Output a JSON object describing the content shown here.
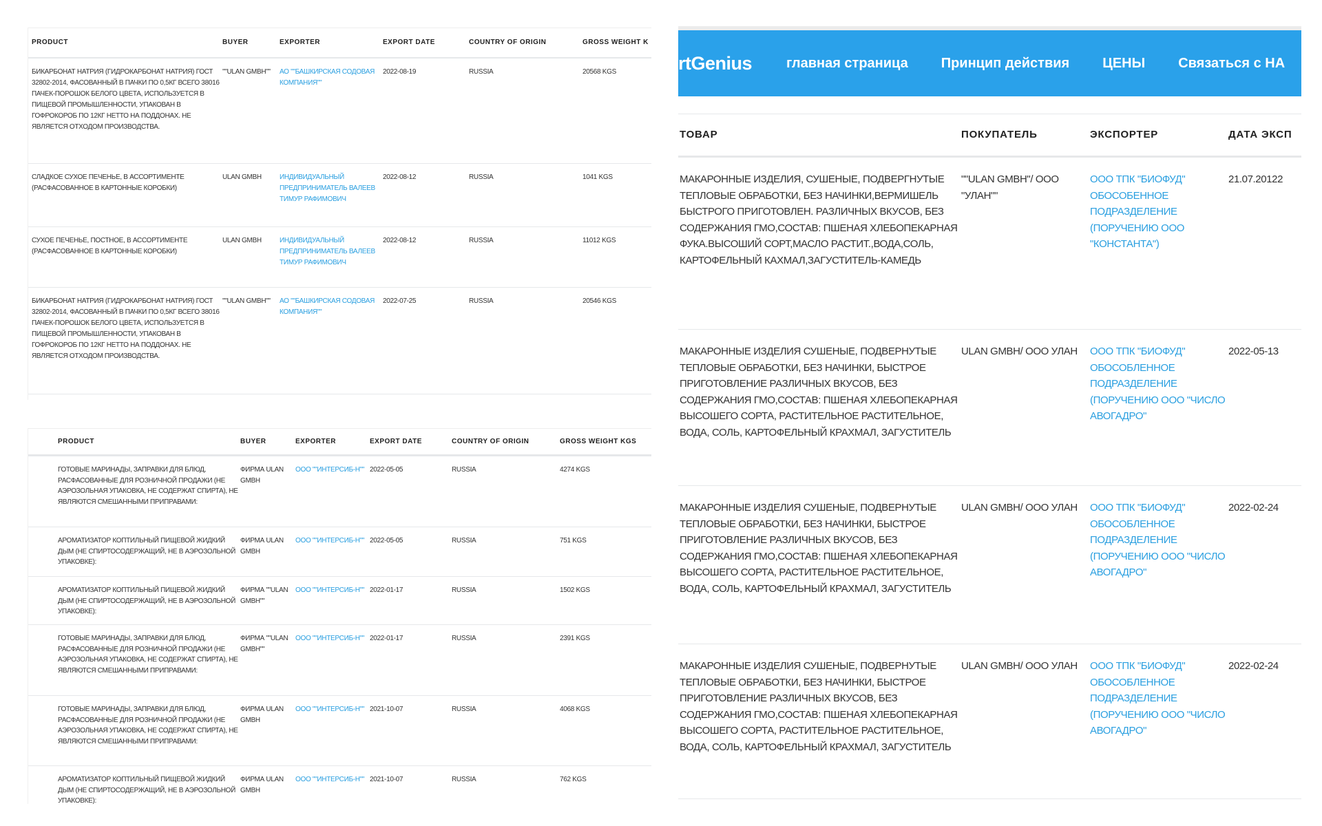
{
  "table_en_1": {
    "headers": [
      "PRODUCT",
      "BUYER",
      "EXPORTER",
      "EXPORT DATE",
      "COUNTRY OF ORIGIN",
      "GROSS WEIGHT K"
    ],
    "rows": [
      {
        "product": "БИКАРБОНАТ НАТРИЯ (ГИДРОКАРБОНАТ НАТРИЯ) ГОСТ 32802-2014, ФАСОВАННЫЙ В ПАЧКИ ПО 0,5КГ ВСЕГО 38016 ПАЧЕК-ПОРОШОК БЕЛОГО ЦВЕТА, ИСПОЛЬЗУЕТСЯ В ПИЩЕВОЙ ПРОМЫШЛЕННОСТИ, УПАКОВАН В ГОФРОКОРОБ ПО 12КГ НЕТТО НА ПОДДОНАХ. НЕ ЯВЛЯЕТСЯ ОТХОДОМ ПРОИЗВОДСТВА.",
        "buyer": "\"\"ULAN GMBH\"\"",
        "exporter": "АО \"\"БАШКИРСКАЯ СОДОВАЯ КОМПАНИЯ\"\"",
        "date": "2022-08-19",
        "country": "RUSSIA",
        "weight": "20568 KGS"
      },
      {
        "product": "СЛАДКОЕ СУХОЕ ПЕЧЕНЬЕ, В АССОРТИМЕНТЕ (РАСФАСОВАННОЕ В КАРТОННЫЕ КОРОБКИ)",
        "buyer": "ULAN GMBH",
        "exporter": "ИНДИВИДУАЛЬНЫЙ ПРЕДПРИНИМАТЕЛЬ ВАЛЕЕВ ТИМУР РАФИМОВИЧ",
        "date": "2022-08-12",
        "country": "RUSSIA",
        "weight": "1041 KGS"
      },
      {
        "product": "СУХОЕ ПЕЧЕНЬЕ, ПОСТНОЕ, В АССОРТИМЕНТЕ (РАСФАСОВАННОЕ В КАРТОННЫЕ КОРОБКИ)",
        "buyer": "ULAN GMBH",
        "exporter": "ИНДИВИДУАЛЬНЫЙ ПРЕДПРИНИМАТЕЛЬ ВАЛЕЕВ ТИМУР РАФИМОВИЧ",
        "date": "2022-08-12",
        "country": "RUSSIA",
        "weight": "11012 KGS"
      },
      {
        "product": "БИКАРБОНАТ НАТРИЯ (ГИДРОКАРБОНАТ НАТРИЯ) ГОСТ 32802-2014, ФАСОВАННЫЙ В ПАЧКИ ПО 0,5КГ ВСЕГО 38016 ПАЧЕК-ПОРОШОК БЕЛОГО ЦВЕТА, ИСПОЛЬЗУЕТСЯ В ПИЩЕВОЙ ПРОМЫШЛЕННОСТИ, УПАКОВАН В ГОФРОКОРОБ ПО 12КГ НЕТТО НА ПОДДОНАХ. НЕ ЯВЛЯЕТСЯ ОТХОДОМ ПРОИЗВОДСТВА.",
        "buyer": "\"\"ULAN GMBH\"\"",
        "exporter": "АО \"\"БАШКИРСКАЯ СОДОВАЯ КОМПАНИЯ\"\"",
        "date": "2022-07-25",
        "country": "RUSSIA",
        "weight": "20546 KGS"
      }
    ]
  },
  "table_en_2": {
    "headers": [
      "PRODUCT",
      "BUYER",
      "EXPORTER",
      "EXPORT DATE",
      "COUNTRY OF ORIGIN",
      "GROSS WEIGHT KGS"
    ],
    "rows": [
      {
        "product": "ГОТОВЫЕ МАРИНАДЫ, ЗАПРАВКИ ДЛЯ БЛЮД, РАСФАСОВАННЫЕ ДЛЯ РОЗНИЧНОЙ ПРОДАЖИ (НЕ АЭРОЗОЛЬНАЯ УПАКОВКА, НЕ СОДЕРЖАТ СПИРТА), НЕ ЯВЛЯЮТСЯ СМЕШАННЫМИ ПРИПРАВАМИ:",
        "buyer": "ФИРМА ULAN GMBH",
        "exporter": "ООО \"\"ИНТЕРСИБ-Н\"\"",
        "date": "2022-05-05",
        "country": "RUSSIA",
        "weight": "4274 KGS"
      },
      {
        "product": "АРОМАТИЗАТОР КОПТИЛЬНЫЙ ПИЩЕВОЙ ЖИДКИЙ ДЫМ (НЕ СПИРТОСОДЕРЖАЩИЙ, НЕ В АЭРОЗОЛЬНОЙ УПАКОВКЕ):",
        "buyer": "ФИРМА ULAN GMBH",
        "exporter": "ООО \"\"ИНТЕРСИБ-Н\"\"",
        "date": "2022-05-05",
        "country": "RUSSIA",
        "weight": "751 KGS"
      },
      {
        "product": "АРОМАТИЗАТОР КОПТИЛЬНЫЙ ПИЩЕВОЙ ЖИДКИЙ ДЫМ (НЕ СПИРТОСОДЕРЖАЩИЙ, НЕ В АЭРОЗОЛЬНОЙ УПАКОВКЕ):",
        "buyer": "ФИРМА \"\"ULAN GMBH\"\"",
        "exporter": "ООО \"\"ИНТЕРСИБ-Н\"\"",
        "date": "2022-01-17",
        "country": "RUSSIA",
        "weight": "1502 KGS"
      },
      {
        "product": "ГОТОВЫЕ МАРИНАДЫ, ЗАПРАВКИ ДЛЯ БЛЮД, РАСФАСОВАННЫЕ ДЛЯ РОЗНИЧНОЙ ПРОДАЖИ (НЕ АЭРОЗОЛЬНАЯ УПАКОВКА, НЕ СОДЕРЖАТ СПИРТА), НЕ ЯВЛЯЮТСЯ СМЕШАННЫМИ ПРИПРАВАМИ:",
        "buyer": "ФИРМА \"\"ULAN GMBH\"\"",
        "exporter": "ООО \"\"ИНТЕРСИБ-Н\"\"",
        "date": "2022-01-17",
        "country": "RUSSIA",
        "weight": "2391 KGS"
      },
      {
        "product": "ГОТОВЫЕ МАРИНАДЫ, ЗАПРАВКИ ДЛЯ БЛЮД, РАСФАСОВАННЫЕ ДЛЯ РОЗНИЧНОЙ ПРОДАЖИ (НЕ АЭРОЗОЛЬНАЯ УПАКОВКА, НЕ СОДЕРЖАТ СПИРТА), НЕ ЯВЛЯЮТСЯ СМЕШАННЫМИ ПРИПРАВАМИ:",
        "buyer": "ФИРМА ULAN GMBH",
        "exporter": "ООО \"\"ИНТЕРСИБ-Н\"\"",
        "date": "2021-10-07",
        "country": "RUSSIA",
        "weight": "4068 KGS"
      },
      {
        "product": "АРОМАТИЗАТОР КОПТИЛЬНЫЙ ПИЩЕВОЙ ЖИДКИЙ ДЫМ (НЕ СПИРТОСОДЕРЖАЩИЙ, НЕ В АЭРОЗОЛЬНОЙ УПАКОВКЕ):",
        "buyer": "ФИРМА ULAN GMBH",
        "exporter": "ООО \"\"ИНТЕРСИБ-Н\"\"",
        "date": "2021-10-07",
        "country": "RUSSIA",
        "weight": "762 KGS"
      }
    ]
  },
  "site": {
    "logo": "rtGenius",
    "nav": [
      "главная страница",
      "Принцип действия",
      "ЦЕНЫ",
      "Связаться с НА"
    ],
    "accent_color": "#2aa1ea"
  },
  "table_ru": {
    "headers": [
      "ТОВАР",
      "ПОКУПАТЕЛЬ",
      "ЭКСПОРТЕР",
      "ДАТА ЭКСП"
    ],
    "rows": [
      {
        "product": "МАКАРОННЫЕ ИЗДЕЛИЯ, СУШЕНЫЕ, ПОДВЕРГНУТЫЕ ТЕПЛОВЫЕ ОБРАБОТКИ, БЕЗ НАЧИНКИ,ВЕРМИШЕЛЬ БЫСТРОГО ПРИГОТОВЛЕН. РАЗЛИЧНЫХ ВКУСОВ, БЕЗ СОДЕРЖАНИЯ ГМО,СОСТАВ: ПШЕНАЯ ХЛЕБОПЕКАРНАЯ ФУКА.ВЫСОШИЙ СОРТ,МАСЛО РАСТИТ.,ВОДА,СОЛЬ, КАРТОФЕЛЬНЫЙ КАХМАЛ,ЗАГУСТИТЕЛЬ-КАМЕДЬ",
        "buyer": "\"\"ULAN GMBH\"/ ООО \"УЛАН\"\"",
        "exporter": "ООО ТПК \"БИОФУД\" ОБОСОБЕННОЕ ПОДРАЗДЕЛЕНИЕ (ПОРУЧЕНИЮ ООО \"КОНСТАНТА\")",
        "date": "21.07.20122"
      },
      {
        "product": "МАКАРОННЫЕ ИЗДЕЛИЯ СУШЕНЫЕ, ПОДВЕРНУТЫЕ ТЕПЛОВЫЕ ОБРАБОТКИ, БЕЗ НАЧИНКИ, БЫСТРОЕ ПРИГОТОВЛЕНИЕ РАЗЛИЧНЫХ ВКУСОВ, БЕЗ СОДЕРЖАНИЯ ГМО,СОСТАВ: ПШЕНАЯ ХЛЕБОПЕКАРНАЯ ВЫСОШЕГО СОРТА, РАСТИТЕЛЬНОЕ РАСТИТЕЛЬНОЕ, ВОДА, СОЛЬ, КАРТОФЕЛЬНЫЙ КРАХМАЛ, ЗАГУСТИТЕЛЬ",
        "buyer": "ULAN GMBH/ ООО УЛАН",
        "exporter": "ООО ТПК \"БИОФУД\" ОБОСОБЛЕННОЕ ПОДРАЗДЕЛЕНИЕ (ПОРУЧЕНИЮ ООО \"ЧИСЛО АВОГАДРО\"",
        "date": "2022-05-13"
      },
      {
        "product": "МАКАРОННЫЕ ИЗДЕЛИЯ СУШЕНЫЕ, ПОДВЕРНУТЫЕ ТЕПЛОВЫЕ ОБРАБОТКИ, БЕЗ НАЧИНКИ, БЫСТРОЕ ПРИГОТОВЛЕНИЕ РАЗЛИЧНЫХ ВКУСОВ, БЕЗ СОДЕРЖАНИЯ ГМО,СОСТАВ: ПШЕНАЯ ХЛЕБОПЕКАРНАЯ ВЫСОШЕГО СОРТА, РАСТИТЕЛЬНОЕ РАСТИТЕЛЬНОЕ, ВОДА, СОЛЬ, КАРТОФЕЛЬНЫЙ КРАХМАЛ, ЗАГУСТИТЕЛЬ",
        "buyer": "ULAN GMBH/ ООО УЛАН",
        "exporter": "ООО ТПК \"БИОФУД\" ОБОСОБЛЕННОЕ ПОДРАЗДЕЛЕНИЕ (ПОРУЧЕНИЮ ООО \"ЧИСЛО АВОГАДРО\"",
        "date": "2022-02-24"
      },
      {
        "product": "МАКАРОННЫЕ ИЗДЕЛИЯ СУШЕНЫЕ, ПОДВЕРНУТЫЕ ТЕПЛОВЫЕ ОБРАБОТКИ, БЕЗ НАЧИНКИ, БЫСТРОЕ ПРИГОТОВЛЕНИЕ РАЗЛИЧНЫХ ВКУСОВ, БЕЗ СОДЕРЖАНИЯ ГМО,СОСТАВ: ПШЕНАЯ ХЛЕБОПЕКАРНАЯ ВЫСОШЕГО СОРТА, РАСТИТЕЛЬНОЕ РАСТИТЕЛЬНОЕ, ВОДА, СОЛЬ, КАРТОФЕЛЬНЫЙ КРАХМАЛ, ЗАГУСТИТЕЛЬ",
        "buyer": "ULAN GMBH/ ООО УЛАН",
        "exporter": "ООО ТПК \"БИОФУД\" ОБОСОБЛЕННОЕ ПОДРАЗДЕЛЕНИЕ (ПОРУЧЕНИЮ ООО \"ЧИСЛО АВОГАДРО\"",
        "date": "2022-02-24"
      }
    ]
  }
}
